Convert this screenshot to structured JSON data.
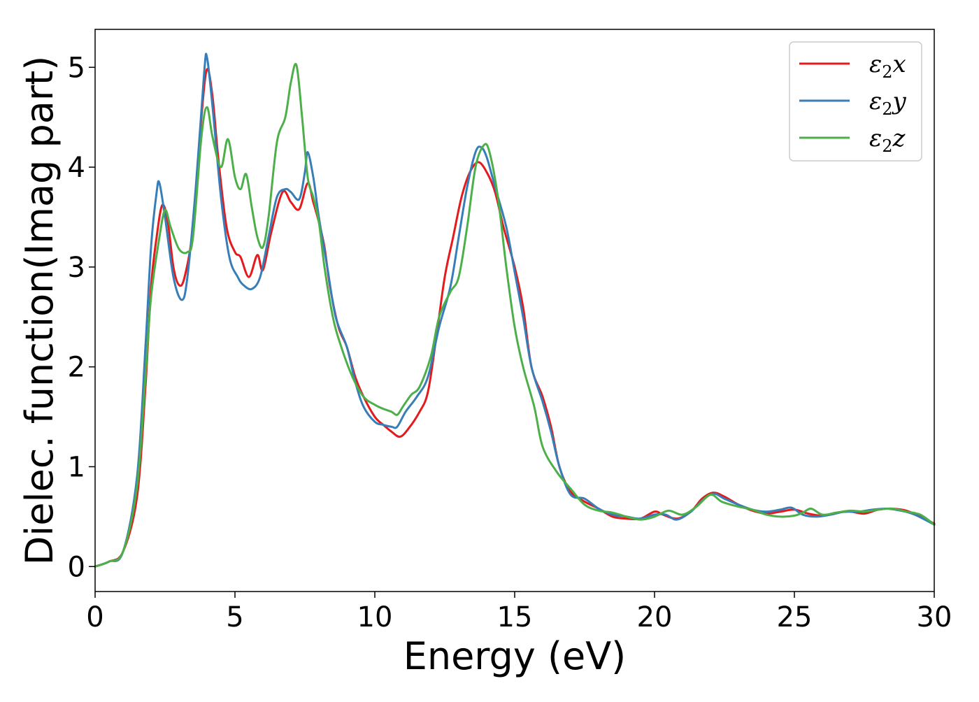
{
  "chart_data": {
    "type": "line",
    "title": "",
    "xlabel": "Energy (eV)",
    "ylabel": "Dielec. function(Imag part)",
    "xlim": [
      0,
      30
    ],
    "ylim": [
      -0.25,
      5.38
    ],
    "xticks": [
      0,
      5,
      10,
      15,
      20,
      25,
      30
    ],
    "yticks": [
      0,
      1,
      2,
      3,
      4,
      5
    ],
    "grid": false,
    "legend_position": "top-right",
    "legend": {
      "entries": [
        {
          "symbol": "ε",
          "sub": "2",
          "suffix": "x",
          "color": "#e41a1c"
        },
        {
          "symbol": "ε",
          "sub": "2",
          "suffix": "y",
          "color": "#377eb8"
        },
        {
          "symbol": "ε",
          "sub": "2",
          "suffix": "z",
          "color": "#4daf4a"
        }
      ]
    },
    "series": [
      {
        "color": "#e41a1c",
        "points": [
          [
            0,
            0
          ],
          [
            0.5,
            0.05
          ],
          [
            1.0,
            0.15
          ],
          [
            1.5,
            0.7
          ],
          [
            1.8,
            1.8
          ],
          [
            2.0,
            2.8
          ],
          [
            2.2,
            3.3
          ],
          [
            2.4,
            3.62
          ],
          [
            2.6,
            3.45
          ],
          [
            2.8,
            3.0
          ],
          [
            3.0,
            2.82
          ],
          [
            3.2,
            2.9
          ],
          [
            3.5,
            3.4
          ],
          [
            3.8,
            4.5
          ],
          [
            4.0,
            4.98
          ],
          [
            4.2,
            4.7
          ],
          [
            4.4,
            4.1
          ],
          [
            4.7,
            3.4
          ],
          [
            5.0,
            3.15
          ],
          [
            5.2,
            3.1
          ],
          [
            5.5,
            2.9
          ],
          [
            5.8,
            3.12
          ],
          [
            6.0,
            2.97
          ],
          [
            6.3,
            3.35
          ],
          [
            6.7,
            3.75
          ],
          [
            7.0,
            3.65
          ],
          [
            7.3,
            3.58
          ],
          [
            7.6,
            3.84
          ],
          [
            7.8,
            3.65
          ],
          [
            8.0,
            3.45
          ],
          [
            8.2,
            3.2
          ],
          [
            8.4,
            2.8
          ],
          [
            8.7,
            2.4
          ],
          [
            9.0,
            2.2
          ],
          [
            9.3,
            1.9
          ],
          [
            9.6,
            1.7
          ],
          [
            10.0,
            1.5
          ],
          [
            10.3,
            1.42
          ],
          [
            10.6,
            1.35
          ],
          [
            10.9,
            1.3
          ],
          [
            11.2,
            1.38
          ],
          [
            11.6,
            1.55
          ],
          [
            11.9,
            1.75
          ],
          [
            12.2,
            2.3
          ],
          [
            12.5,
            2.9
          ],
          [
            12.8,
            3.3
          ],
          [
            13.1,
            3.7
          ],
          [
            13.4,
            3.95
          ],
          [
            13.7,
            4.05
          ],
          [
            14.0,
            3.95
          ],
          [
            14.3,
            3.75
          ],
          [
            14.6,
            3.4
          ],
          [
            15.0,
            3.0
          ],
          [
            15.3,
            2.6
          ],
          [
            15.6,
            2.0
          ],
          [
            16.0,
            1.7
          ],
          [
            16.3,
            1.4
          ],
          [
            16.6,
            1.0
          ],
          [
            17.0,
            0.75
          ],
          [
            17.5,
            0.65
          ],
          [
            18.0,
            0.58
          ],
          [
            18.5,
            0.5
          ],
          [
            19.0,
            0.48
          ],
          [
            19.5,
            0.48
          ],
          [
            20.0,
            0.55
          ],
          [
            20.3,
            0.52
          ],
          [
            20.8,
            0.48
          ],
          [
            21.3,
            0.55
          ],
          [
            21.7,
            0.68
          ],
          [
            22.1,
            0.74
          ],
          [
            22.5,
            0.7
          ],
          [
            23.0,
            0.62
          ],
          [
            23.5,
            0.56
          ],
          [
            24.0,
            0.53
          ],
          [
            24.5,
            0.55
          ],
          [
            25.0,
            0.57
          ],
          [
            25.5,
            0.53
          ],
          [
            26.0,
            0.51
          ],
          [
            26.5,
            0.54
          ],
          [
            27.0,
            0.55
          ],
          [
            27.5,
            0.53
          ],
          [
            28.0,
            0.57
          ],
          [
            28.5,
            0.58
          ],
          [
            29.0,
            0.56
          ],
          [
            29.5,
            0.5
          ],
          [
            30.0,
            0.43
          ]
        ]
      },
      {
        "color": "#377eb8",
        "points": [
          [
            0,
            0
          ],
          [
            0.5,
            0.05
          ],
          [
            1.0,
            0.15
          ],
          [
            1.5,
            0.9
          ],
          [
            1.8,
            2.2
          ],
          [
            2.0,
            3.2
          ],
          [
            2.2,
            3.75
          ],
          [
            2.3,
            3.84
          ],
          [
            2.5,
            3.5
          ],
          [
            2.8,
            2.9
          ],
          [
            3.1,
            2.67
          ],
          [
            3.3,
            2.9
          ],
          [
            3.6,
            3.8
          ],
          [
            3.9,
            4.95
          ],
          [
            4.0,
            5.1
          ],
          [
            4.2,
            4.6
          ],
          [
            4.5,
            3.7
          ],
          [
            4.8,
            3.1
          ],
          [
            5.1,
            2.9
          ],
          [
            5.3,
            2.82
          ],
          [
            5.6,
            2.78
          ],
          [
            5.9,
            2.9
          ],
          [
            6.2,
            3.3
          ],
          [
            6.5,
            3.7
          ],
          [
            6.8,
            3.78
          ],
          [
            7.0,
            3.75
          ],
          [
            7.3,
            3.68
          ],
          [
            7.5,
            3.95
          ],
          [
            7.6,
            4.15
          ],
          [
            7.8,
            3.9
          ],
          [
            8.0,
            3.5
          ],
          [
            8.3,
            3.0
          ],
          [
            8.6,
            2.5
          ],
          [
            9.0,
            2.2
          ],
          [
            9.3,
            1.85
          ],
          [
            9.6,
            1.6
          ],
          [
            10.0,
            1.45
          ],
          [
            10.3,
            1.42
          ],
          [
            10.6,
            1.4
          ],
          [
            10.8,
            1.4
          ],
          [
            11.1,
            1.55
          ],
          [
            11.5,
            1.7
          ],
          [
            11.9,
            1.9
          ],
          [
            12.3,
            2.4
          ],
          [
            12.7,
            2.8
          ],
          [
            13.0,
            3.3
          ],
          [
            13.3,
            3.8
          ],
          [
            13.6,
            4.15
          ],
          [
            13.8,
            4.2
          ],
          [
            14.0,
            4.1
          ],
          [
            14.3,
            3.8
          ],
          [
            14.7,
            3.4
          ],
          [
            15.0,
            2.95
          ],
          [
            15.3,
            2.5
          ],
          [
            15.6,
            2.0
          ],
          [
            16.0,
            1.65
          ],
          [
            16.3,
            1.35
          ],
          [
            16.6,
            1.0
          ],
          [
            17.0,
            0.72
          ],
          [
            17.5,
            0.68
          ],
          [
            18.0,
            0.58
          ],
          [
            18.5,
            0.52
          ],
          [
            19.0,
            0.5
          ],
          [
            19.5,
            0.48
          ],
          [
            20.0,
            0.52
          ],
          [
            20.4,
            0.52
          ],
          [
            20.8,
            0.47
          ],
          [
            21.3,
            0.55
          ],
          [
            21.7,
            0.66
          ],
          [
            22.1,
            0.73
          ],
          [
            22.5,
            0.68
          ],
          [
            23.0,
            0.62
          ],
          [
            23.5,
            0.57
          ],
          [
            24.0,
            0.55
          ],
          [
            24.5,
            0.57
          ],
          [
            24.9,
            0.59
          ],
          [
            25.3,
            0.52
          ],
          [
            25.8,
            0.5
          ],
          [
            26.3,
            0.52
          ],
          [
            26.8,
            0.55
          ],
          [
            27.3,
            0.55
          ],
          [
            27.8,
            0.57
          ],
          [
            28.3,
            0.58
          ],
          [
            28.8,
            0.56
          ],
          [
            29.3,
            0.52
          ],
          [
            30.0,
            0.42
          ]
        ]
      },
      {
        "color": "#4daf4a",
        "points": [
          [
            0,
            0
          ],
          [
            0.5,
            0.05
          ],
          [
            1.0,
            0.15
          ],
          [
            1.5,
            0.8
          ],
          [
            1.8,
            1.9
          ],
          [
            2.0,
            2.7
          ],
          [
            2.3,
            3.3
          ],
          [
            2.5,
            3.57
          ],
          [
            2.7,
            3.4
          ],
          [
            3.0,
            3.18
          ],
          [
            3.3,
            3.15
          ],
          [
            3.5,
            3.3
          ],
          [
            3.8,
            4.3
          ],
          [
            4.0,
            4.6
          ],
          [
            4.2,
            4.3
          ],
          [
            4.5,
            4.0
          ],
          [
            4.75,
            4.28
          ],
          [
            5.0,
            3.9
          ],
          [
            5.2,
            3.78
          ],
          [
            5.4,
            3.93
          ],
          [
            5.6,
            3.6
          ],
          [
            5.8,
            3.3
          ],
          [
            6.0,
            3.2
          ],
          [
            6.2,
            3.5
          ],
          [
            6.5,
            4.25
          ],
          [
            6.8,
            4.5
          ],
          [
            7.0,
            4.85
          ],
          [
            7.2,
            5.02
          ],
          [
            7.4,
            4.5
          ],
          [
            7.6,
            3.9
          ],
          [
            7.8,
            3.7
          ],
          [
            8.0,
            3.45
          ],
          [
            8.2,
            3.0
          ],
          [
            8.5,
            2.5
          ],
          [
            8.8,
            2.2
          ],
          [
            9.2,
            1.9
          ],
          [
            9.6,
            1.7
          ],
          [
            10.0,
            1.62
          ],
          [
            10.3,
            1.58
          ],
          [
            10.6,
            1.55
          ],
          [
            10.8,
            1.52
          ],
          [
            11.0,
            1.6
          ],
          [
            11.3,
            1.72
          ],
          [
            11.6,
            1.8
          ],
          [
            12.0,
            2.1
          ],
          [
            12.3,
            2.5
          ],
          [
            12.7,
            2.75
          ],
          [
            13.0,
            2.9
          ],
          [
            13.3,
            3.4
          ],
          [
            13.6,
            4.0
          ],
          [
            13.9,
            4.22
          ],
          [
            14.1,
            4.15
          ],
          [
            14.4,
            3.7
          ],
          [
            14.7,
            3.0
          ],
          [
            15.0,
            2.4
          ],
          [
            15.3,
            2.0
          ],
          [
            15.7,
            1.6
          ],
          [
            16.0,
            1.2
          ],
          [
            16.5,
            0.95
          ],
          [
            17.0,
            0.78
          ],
          [
            17.5,
            0.62
          ],
          [
            18.0,
            0.56
          ],
          [
            18.5,
            0.54
          ],
          [
            19.0,
            0.5
          ],
          [
            19.5,
            0.47
          ],
          [
            20.0,
            0.5
          ],
          [
            20.5,
            0.56
          ],
          [
            21.0,
            0.52
          ],
          [
            21.5,
            0.6
          ],
          [
            22.0,
            0.72
          ],
          [
            22.4,
            0.65
          ],
          [
            23.0,
            0.6
          ],
          [
            23.5,
            0.57
          ],
          [
            24.0,
            0.52
          ],
          [
            24.5,
            0.5
          ],
          [
            25.0,
            0.51
          ],
          [
            25.3,
            0.54
          ],
          [
            25.6,
            0.58
          ],
          [
            26.0,
            0.52
          ],
          [
            26.5,
            0.54
          ],
          [
            27.0,
            0.56
          ],
          [
            27.5,
            0.55
          ],
          [
            28.0,
            0.57
          ],
          [
            28.5,
            0.58
          ],
          [
            29.0,
            0.55
          ],
          [
            29.5,
            0.52
          ],
          [
            30.0,
            0.42
          ]
        ]
      }
    ]
  }
}
